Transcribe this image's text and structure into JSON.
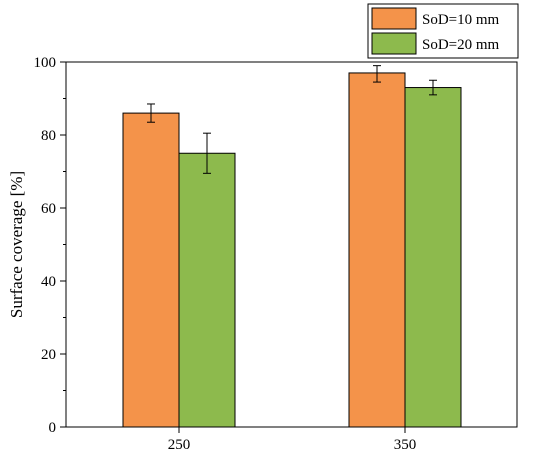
{
  "chart_data": {
    "type": "bar",
    "categories": [
      "250",
      "350"
    ],
    "series": [
      {
        "name": "SoD=10 mm",
        "color": "#F4934A",
        "values": [
          86,
          97
        ],
        "errors": [
          [
            83.5,
            88.5
          ],
          [
            94.5,
            99
          ]
        ]
      },
      {
        "name": "SoD=20 mm",
        "color": "#8DBA4D",
        "values": [
          75,
          93
        ],
        "errors": [
          [
            69.5,
            80.5
          ],
          [
            91,
            95
          ]
        ]
      }
    ],
    "xlabel": "",
    "ylabel": "Surface coverage [%]",
    "ylim": [
      0,
      100
    ],
    "yticks": [
      0,
      20,
      40,
      60,
      80,
      100
    ],
    "grid": false,
    "legend_position": "top-right"
  }
}
